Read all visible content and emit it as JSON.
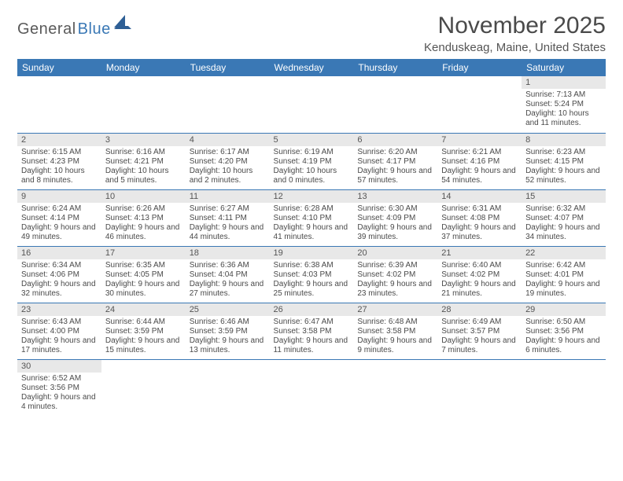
{
  "logo": {
    "part1": "General",
    "part2": "Blue"
  },
  "title": "November 2025",
  "location": "Kenduskeag, Maine, United States",
  "colors": {
    "header_bg": "#3a78b5",
    "header_fg": "#ffffff",
    "daynum_bg": "#e8e8e8",
    "text": "#4a4a4a",
    "border": "#3a78b5"
  },
  "day_headers": [
    "Sunday",
    "Monday",
    "Tuesday",
    "Wednesday",
    "Thursday",
    "Friday",
    "Saturday"
  ],
  "weeks": [
    [
      {
        "n": "",
        "sr": "",
        "ss": "",
        "dl": ""
      },
      {
        "n": "",
        "sr": "",
        "ss": "",
        "dl": ""
      },
      {
        "n": "",
        "sr": "",
        "ss": "",
        "dl": ""
      },
      {
        "n": "",
        "sr": "",
        "ss": "",
        "dl": ""
      },
      {
        "n": "",
        "sr": "",
        "ss": "",
        "dl": ""
      },
      {
        "n": "",
        "sr": "",
        "ss": "",
        "dl": ""
      },
      {
        "n": "1",
        "sr": "Sunrise: 7:13 AM",
        "ss": "Sunset: 5:24 PM",
        "dl": "Daylight: 10 hours and 11 minutes."
      }
    ],
    [
      {
        "n": "2",
        "sr": "Sunrise: 6:15 AM",
        "ss": "Sunset: 4:23 PM",
        "dl": "Daylight: 10 hours and 8 minutes."
      },
      {
        "n": "3",
        "sr": "Sunrise: 6:16 AM",
        "ss": "Sunset: 4:21 PM",
        "dl": "Daylight: 10 hours and 5 minutes."
      },
      {
        "n": "4",
        "sr": "Sunrise: 6:17 AM",
        "ss": "Sunset: 4:20 PM",
        "dl": "Daylight: 10 hours and 2 minutes."
      },
      {
        "n": "5",
        "sr": "Sunrise: 6:19 AM",
        "ss": "Sunset: 4:19 PM",
        "dl": "Daylight: 10 hours and 0 minutes."
      },
      {
        "n": "6",
        "sr": "Sunrise: 6:20 AM",
        "ss": "Sunset: 4:17 PM",
        "dl": "Daylight: 9 hours and 57 minutes."
      },
      {
        "n": "7",
        "sr": "Sunrise: 6:21 AM",
        "ss": "Sunset: 4:16 PM",
        "dl": "Daylight: 9 hours and 54 minutes."
      },
      {
        "n": "8",
        "sr": "Sunrise: 6:23 AM",
        "ss": "Sunset: 4:15 PM",
        "dl": "Daylight: 9 hours and 52 minutes."
      }
    ],
    [
      {
        "n": "9",
        "sr": "Sunrise: 6:24 AM",
        "ss": "Sunset: 4:14 PM",
        "dl": "Daylight: 9 hours and 49 minutes."
      },
      {
        "n": "10",
        "sr": "Sunrise: 6:26 AM",
        "ss": "Sunset: 4:13 PM",
        "dl": "Daylight: 9 hours and 46 minutes."
      },
      {
        "n": "11",
        "sr": "Sunrise: 6:27 AM",
        "ss": "Sunset: 4:11 PM",
        "dl": "Daylight: 9 hours and 44 minutes."
      },
      {
        "n": "12",
        "sr": "Sunrise: 6:28 AM",
        "ss": "Sunset: 4:10 PM",
        "dl": "Daylight: 9 hours and 41 minutes."
      },
      {
        "n": "13",
        "sr": "Sunrise: 6:30 AM",
        "ss": "Sunset: 4:09 PM",
        "dl": "Daylight: 9 hours and 39 minutes."
      },
      {
        "n": "14",
        "sr": "Sunrise: 6:31 AM",
        "ss": "Sunset: 4:08 PM",
        "dl": "Daylight: 9 hours and 37 minutes."
      },
      {
        "n": "15",
        "sr": "Sunrise: 6:32 AM",
        "ss": "Sunset: 4:07 PM",
        "dl": "Daylight: 9 hours and 34 minutes."
      }
    ],
    [
      {
        "n": "16",
        "sr": "Sunrise: 6:34 AM",
        "ss": "Sunset: 4:06 PM",
        "dl": "Daylight: 9 hours and 32 minutes."
      },
      {
        "n": "17",
        "sr": "Sunrise: 6:35 AM",
        "ss": "Sunset: 4:05 PM",
        "dl": "Daylight: 9 hours and 30 minutes."
      },
      {
        "n": "18",
        "sr": "Sunrise: 6:36 AM",
        "ss": "Sunset: 4:04 PM",
        "dl": "Daylight: 9 hours and 27 minutes."
      },
      {
        "n": "19",
        "sr": "Sunrise: 6:38 AM",
        "ss": "Sunset: 4:03 PM",
        "dl": "Daylight: 9 hours and 25 minutes."
      },
      {
        "n": "20",
        "sr": "Sunrise: 6:39 AM",
        "ss": "Sunset: 4:02 PM",
        "dl": "Daylight: 9 hours and 23 minutes."
      },
      {
        "n": "21",
        "sr": "Sunrise: 6:40 AM",
        "ss": "Sunset: 4:02 PM",
        "dl": "Daylight: 9 hours and 21 minutes."
      },
      {
        "n": "22",
        "sr": "Sunrise: 6:42 AM",
        "ss": "Sunset: 4:01 PM",
        "dl": "Daylight: 9 hours and 19 minutes."
      }
    ],
    [
      {
        "n": "23",
        "sr": "Sunrise: 6:43 AM",
        "ss": "Sunset: 4:00 PM",
        "dl": "Daylight: 9 hours and 17 minutes."
      },
      {
        "n": "24",
        "sr": "Sunrise: 6:44 AM",
        "ss": "Sunset: 3:59 PM",
        "dl": "Daylight: 9 hours and 15 minutes."
      },
      {
        "n": "25",
        "sr": "Sunrise: 6:46 AM",
        "ss": "Sunset: 3:59 PM",
        "dl": "Daylight: 9 hours and 13 minutes."
      },
      {
        "n": "26",
        "sr": "Sunrise: 6:47 AM",
        "ss": "Sunset: 3:58 PM",
        "dl": "Daylight: 9 hours and 11 minutes."
      },
      {
        "n": "27",
        "sr": "Sunrise: 6:48 AM",
        "ss": "Sunset: 3:58 PM",
        "dl": "Daylight: 9 hours and 9 minutes."
      },
      {
        "n": "28",
        "sr": "Sunrise: 6:49 AM",
        "ss": "Sunset: 3:57 PM",
        "dl": "Daylight: 9 hours and 7 minutes."
      },
      {
        "n": "29",
        "sr": "Sunrise: 6:50 AM",
        "ss": "Sunset: 3:56 PM",
        "dl": "Daylight: 9 hours and 6 minutes."
      }
    ],
    [
      {
        "n": "30",
        "sr": "Sunrise: 6:52 AM",
        "ss": "Sunset: 3:56 PM",
        "dl": "Daylight: 9 hours and 4 minutes."
      },
      {
        "n": "",
        "sr": "",
        "ss": "",
        "dl": ""
      },
      {
        "n": "",
        "sr": "",
        "ss": "",
        "dl": ""
      },
      {
        "n": "",
        "sr": "",
        "ss": "",
        "dl": ""
      },
      {
        "n": "",
        "sr": "",
        "ss": "",
        "dl": ""
      },
      {
        "n": "",
        "sr": "",
        "ss": "",
        "dl": ""
      },
      {
        "n": "",
        "sr": "",
        "ss": "",
        "dl": ""
      }
    ]
  ]
}
